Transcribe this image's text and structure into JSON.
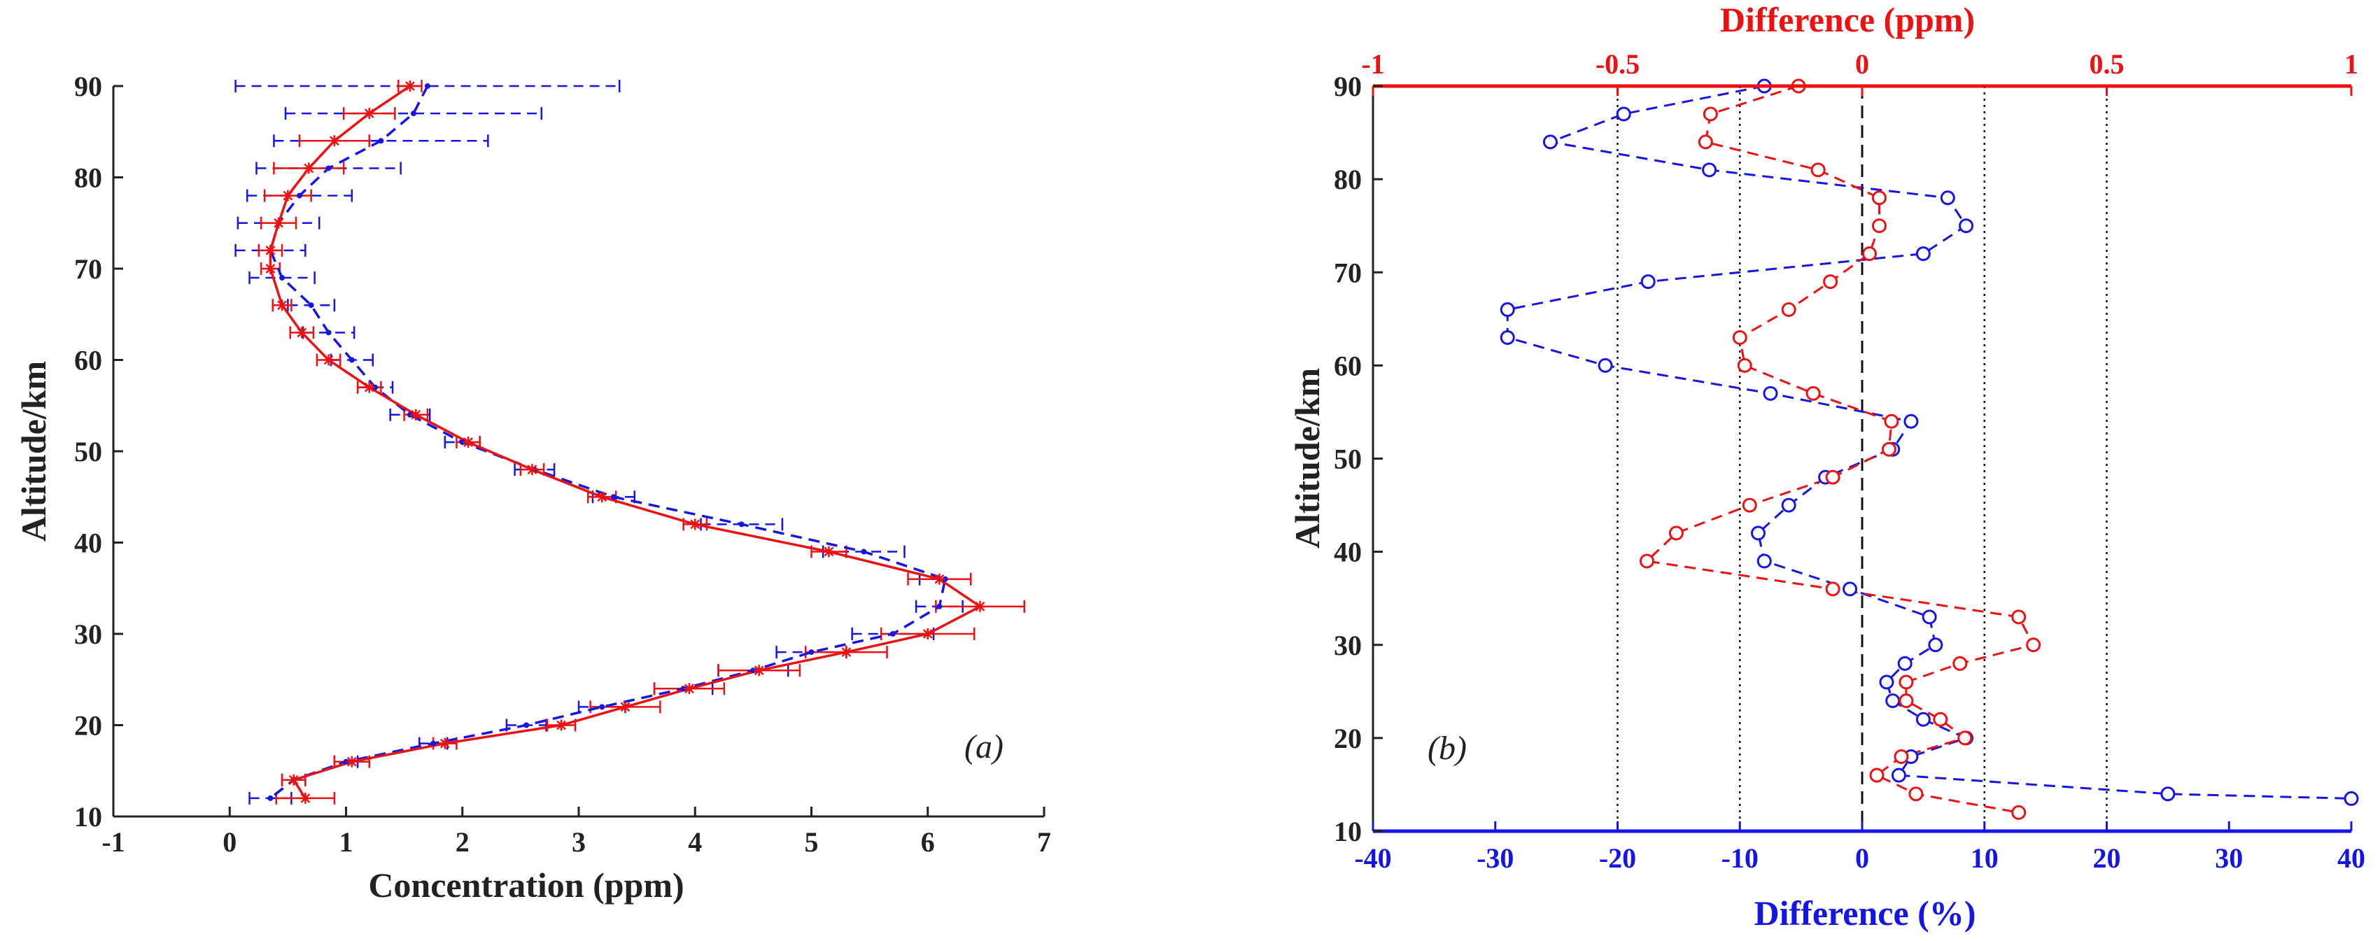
{
  "chart_data": [
    {
      "type": "line",
      "panel_label": "(a)",
      "xlabel": "Concentration (ppm)",
      "ylabel": "Altitude/km",
      "xlim": [
        -1,
        7
      ],
      "ylim": [
        10,
        90
      ],
      "xticks": [
        "-1",
        "0",
        "1",
        "2",
        "3",
        "4",
        "5",
        "6",
        "7"
      ],
      "yticks": [
        "10",
        "20",
        "30",
        "40",
        "50",
        "60",
        "70",
        "80",
        "90"
      ],
      "grid": false,
      "series": [
        {
          "name": "blue dashed profile",
          "color": "#1515e6",
          "style": "dashed",
          "marker": "dot",
          "points": [
            {
              "x": 1.7,
              "y": 90,
              "err": 1.65
            },
            {
              "x": 1.58,
              "y": 87,
              "err": 1.1
            },
            {
              "x": 1.3,
              "y": 84,
              "err": 0.92
            },
            {
              "x": 0.85,
              "y": 81,
              "err": 0.62
            },
            {
              "x": 0.6,
              "y": 78,
              "err": 0.45
            },
            {
              "x": 0.42,
              "y": 75,
              "err": 0.35
            },
            {
              "x": 0.35,
              "y": 72,
              "err": 0.3
            },
            {
              "x": 0.45,
              "y": 69,
              "err": 0.28
            },
            {
              "x": 0.7,
              "y": 66,
              "err": 0.2
            },
            {
              "x": 0.85,
              "y": 63,
              "err": 0.22
            },
            {
              "x": 1.05,
              "y": 60,
              "err": 0.18
            },
            {
              "x": 1.25,
              "y": 57,
              "err": 0.15
            },
            {
              "x": 1.55,
              "y": 54,
              "err": 0.17
            },
            {
              "x": 2.0,
              "y": 51,
              "err": 0.15
            },
            {
              "x": 2.62,
              "y": 48,
              "err": 0.17
            },
            {
              "x": 3.3,
              "y": 45,
              "err": 0.18
            },
            {
              "x": 4.4,
              "y": 42,
              "err": 0.35
            },
            {
              "x": 5.45,
              "y": 39,
              "err": 0.35
            },
            {
              "x": 6.15,
              "y": 36,
              "err": 0.22
            },
            {
              "x": 6.1,
              "y": 33,
              "err": 0.2
            },
            {
              "x": 5.7,
              "y": 30,
              "err": 0.35
            },
            {
              "x": 5.0,
              "y": 28,
              "err": 0.3
            },
            {
              "x": 4.5,
              "y": 26,
              "err": 0.3
            },
            {
              "x": 3.9,
              "y": 24,
              "err": 0.25
            },
            {
              "x": 3.2,
              "y": 22,
              "err": 0.2
            },
            {
              "x": 2.55,
              "y": 20,
              "err": 0.17
            },
            {
              "x": 1.75,
              "y": 18,
              "err": 0.12
            },
            {
              "x": 1.0,
              "y": 16,
              "err": 0.1
            },
            {
              "x": 0.55,
              "y": 14,
              "err": 0.1
            },
            {
              "x": 0.35,
              "y": 12,
              "err": 0.18
            }
          ]
        },
        {
          "name": "red solid profile",
          "color": "#ee1111",
          "style": "solid",
          "marker": "asterisk",
          "points": [
            {
              "x": 1.55,
              "y": 90,
              "err": 0.1
            },
            {
              "x": 1.2,
              "y": 87,
              "err": 0.22
            },
            {
              "x": 0.9,
              "y": 84,
              "err": 0.3
            },
            {
              "x": 0.68,
              "y": 81,
              "err": 0.3
            },
            {
              "x": 0.5,
              "y": 78,
              "err": 0.2
            },
            {
              "x": 0.42,
              "y": 75,
              "err": 0.15
            },
            {
              "x": 0.35,
              "y": 72,
              "err": 0.1
            },
            {
              "x": 0.35,
              "y": 70,
              "err": 0.08
            },
            {
              "x": 0.45,
              "y": 66,
              "err": 0.08
            },
            {
              "x": 0.62,
              "y": 63,
              "err": 0.1
            },
            {
              "x": 0.85,
              "y": 60,
              "err": 0.1
            },
            {
              "x": 1.2,
              "y": 57,
              "err": 0.1
            },
            {
              "x": 1.6,
              "y": 54,
              "err": 0.1
            },
            {
              "x": 2.05,
              "y": 51,
              "err": 0.1
            },
            {
              "x": 2.6,
              "y": 48,
              "err": 0.1
            },
            {
              "x": 3.2,
              "y": 45,
              "err": 0.12
            },
            {
              "x": 4.0,
              "y": 42,
              "err": 0.1
            },
            {
              "x": 5.15,
              "y": 39,
              "err": 0.15
            },
            {
              "x": 6.1,
              "y": 36,
              "err": 0.27
            },
            {
              "x": 6.45,
              "y": 33,
              "err": 0.38
            },
            {
              "x": 6.0,
              "y": 30,
              "err": 0.4
            },
            {
              "x": 5.3,
              "y": 28,
              "err": 0.35
            },
            {
              "x": 4.55,
              "y": 26,
              "err": 0.35
            },
            {
              "x": 3.95,
              "y": 24,
              "err": 0.3
            },
            {
              "x": 3.4,
              "y": 22,
              "err": 0.3
            },
            {
              "x": 2.85,
              "y": 20,
              "err": 0.12
            },
            {
              "x": 1.85,
              "y": 18,
              "err": 0.1
            },
            {
              "x": 1.05,
              "y": 16,
              "err": 0.15
            },
            {
              "x": 0.55,
              "y": 14,
              "err": 0.1
            },
            {
              "x": 0.65,
              "y": 12,
              "err": 0.25
            }
          ]
        }
      ]
    },
    {
      "type": "line",
      "panel_label": "(b)",
      "ylabel": "Altitude/km",
      "ylim": [
        10,
        90
      ],
      "yticks": [
        "10",
        "20",
        "30",
        "40",
        "50",
        "60",
        "70",
        "80",
        "90"
      ],
      "x_bottom": {
        "label": "Difference (%)",
        "color": "#1515e6",
        "lim": [
          -40,
          40
        ],
        "ticks": [
          "-40",
          "-30",
          "-20",
          "-10",
          "0",
          "10",
          "20",
          "30",
          "40"
        ]
      },
      "x_top": {
        "label": "Difference (ppm)",
        "color": "#ee1111",
        "lim": [
          -1,
          1
        ],
        "ticks": [
          "-1",
          "-0.5",
          "0",
          "0.5",
          "1"
        ]
      },
      "reference_lines": [
        {
          "x_percent": -20,
          "style": "dotted"
        },
        {
          "x_percent": -10,
          "style": "dotted"
        },
        {
          "x_percent": 0,
          "style": "dashed"
        },
        {
          "x_percent": 10,
          "style": "dotted"
        },
        {
          "x_percent": 20,
          "style": "dotted"
        }
      ],
      "series": [
        {
          "name": "Difference (%)",
          "axis": "bottom",
          "color": "#1515e6",
          "style": "dashed",
          "marker": "circle",
          "points": [
            {
              "x": -8,
              "y": 90
            },
            {
              "x": -19.5,
              "y": 87
            },
            {
              "x": -25.5,
              "y": 84
            },
            {
              "x": -12.5,
              "y": 81
            },
            {
              "x": 7,
              "y": 78
            },
            {
              "x": 8.5,
              "y": 75
            },
            {
              "x": 5,
              "y": 72
            },
            {
              "x": -17.5,
              "y": 69
            },
            {
              "x": -29,
              "y": 66
            },
            {
              "x": -29,
              "y": 63
            },
            {
              "x": -21,
              "y": 60
            },
            {
              "x": -7.5,
              "y": 57
            },
            {
              "x": 4,
              "y": 54
            },
            {
              "x": 2.5,
              "y": 51
            },
            {
              "x": -3,
              "y": 48
            },
            {
              "x": -6,
              "y": 45
            },
            {
              "x": -8.5,
              "y": 42
            },
            {
              "x": -8,
              "y": 39
            },
            {
              "x": -1,
              "y": 36
            },
            {
              "x": 5.5,
              "y": 33
            },
            {
              "x": 6,
              "y": 30
            },
            {
              "x": 3.5,
              "y": 28
            },
            {
              "x": 2,
              "y": 26
            },
            {
              "x": 2.5,
              "y": 24
            },
            {
              "x": 5,
              "y": 22
            },
            {
              "x": 8.5,
              "y": 20
            },
            {
              "x": 4,
              "y": 18
            },
            {
              "x": 3,
              "y": 16
            },
            {
              "x": 25,
              "y": 14
            },
            {
              "x": 40,
              "y": 13.5
            }
          ]
        },
        {
          "name": "Difference (ppm)",
          "axis": "top",
          "color": "#ee1111",
          "style": "dashed",
          "marker": "circle",
          "points": [
            {
              "x": -0.13,
              "y": 90
            },
            {
              "x": -0.31,
              "y": 87
            },
            {
              "x": -0.32,
              "y": 84
            },
            {
              "x": -0.09,
              "y": 81
            },
            {
              "x": 0.035,
              "y": 78
            },
            {
              "x": 0.035,
              "y": 75
            },
            {
              "x": 0.015,
              "y": 72
            },
            {
              "x": -0.065,
              "y": 69
            },
            {
              "x": -0.15,
              "y": 66
            },
            {
              "x": -0.25,
              "y": 63
            },
            {
              "x": -0.24,
              "y": 60
            },
            {
              "x": -0.1,
              "y": 57
            },
            {
              "x": 0.06,
              "y": 54
            },
            {
              "x": 0.055,
              "y": 51
            },
            {
              "x": -0.06,
              "y": 48
            },
            {
              "x": -0.23,
              "y": 45
            },
            {
              "x": -0.38,
              "y": 42
            },
            {
              "x": -0.44,
              "y": 39
            },
            {
              "x": -0.06,
              "y": 36
            },
            {
              "x": 0.32,
              "y": 33
            },
            {
              "x": 0.35,
              "y": 30
            },
            {
              "x": 0.2,
              "y": 28
            },
            {
              "x": 0.09,
              "y": 26
            },
            {
              "x": 0.09,
              "y": 24
            },
            {
              "x": 0.16,
              "y": 22
            },
            {
              "x": 0.21,
              "y": 20
            },
            {
              "x": 0.08,
              "y": 18
            },
            {
              "x": 0.03,
              "y": 16
            },
            {
              "x": 0.11,
              "y": 14
            },
            {
              "x": 0.32,
              "y": 12
            }
          ]
        }
      ]
    }
  ]
}
